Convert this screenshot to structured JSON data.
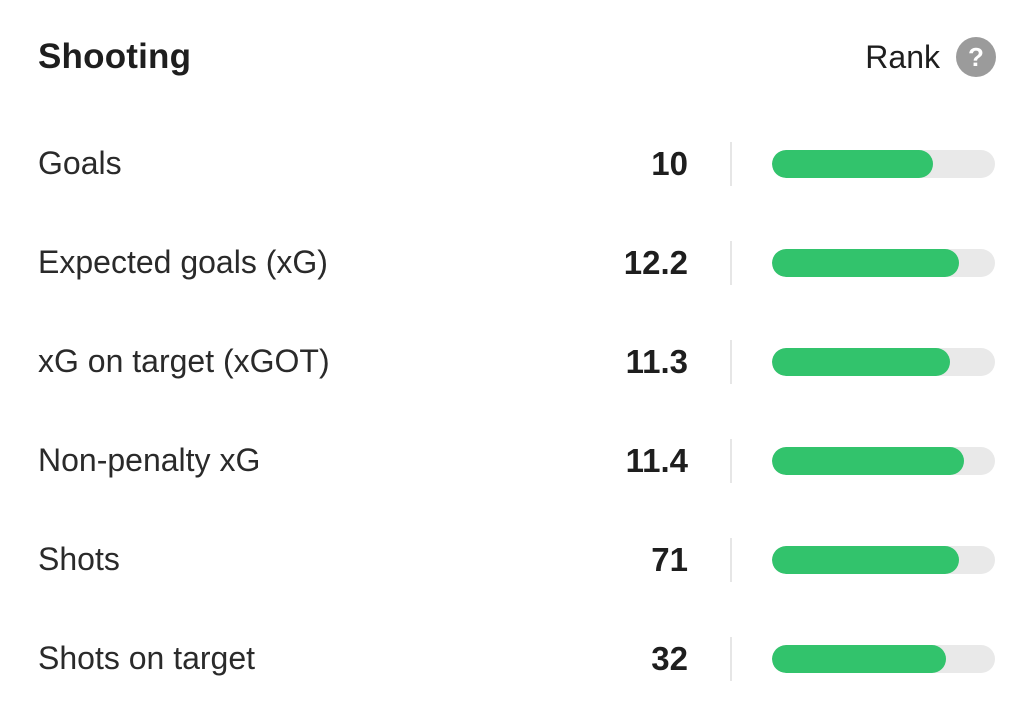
{
  "header": {
    "title": "Shooting",
    "rank_label": "Rank",
    "help_icon": "?"
  },
  "colors": {
    "bar_fill": "#32c36c",
    "bar_track": "#e9e9e9",
    "help_icon_bg": "#9b9b9b"
  },
  "stats": [
    {
      "label": "Goals",
      "value": "10",
      "rank_fraction": 0.72
    },
    {
      "label": "Expected goals (xG)",
      "value": "12.2",
      "rank_fraction": 0.84
    },
    {
      "label": "xG on target (xGOT)",
      "value": "11.3",
      "rank_fraction": 0.8
    },
    {
      "label": "Non-penalty xG",
      "value": "11.4",
      "rank_fraction": 0.86
    },
    {
      "label": "Shots",
      "value": "71",
      "rank_fraction": 0.84
    },
    {
      "label": "Shots on target",
      "value": "32",
      "rank_fraction": 0.78
    }
  ]
}
